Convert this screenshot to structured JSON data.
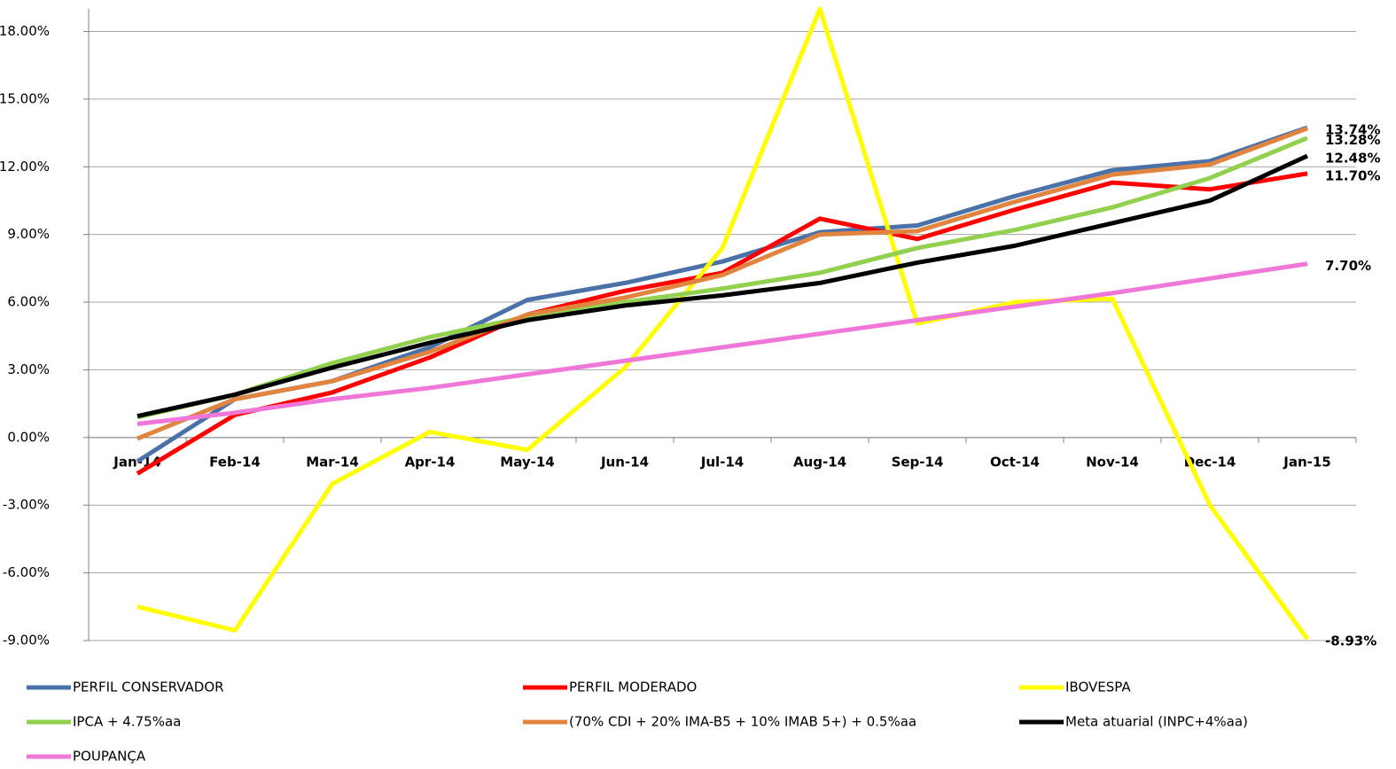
{
  "chart_data": {
    "type": "line",
    "categories": [
      "Jan-14",
      "Feb-14",
      "Mar-14",
      "Apr-14",
      "May-14",
      "Jun-14",
      "Jul-14",
      "Aug-14",
      "Sep-14",
      "Oct-14",
      "Nov-14",
      "Dec-14",
      "Jan-15"
    ],
    "ylim": [
      -9,
      19
    ],
    "yticks": [
      {
        "value": -9,
        "label": "-9.00%"
      },
      {
        "value": -6,
        "label": "-6.00%"
      },
      {
        "value": -3,
        "label": "-3.00%"
      },
      {
        "value": 0,
        "label": "0.00%"
      },
      {
        "value": 3,
        "label": "3.00%"
      },
      {
        "value": 6,
        "label": "6.00%"
      },
      {
        "value": 9,
        "label": "9.00%"
      },
      {
        "value": 12,
        "label": "12.00%"
      },
      {
        "value": 15,
        "label": "15.00%"
      },
      {
        "value": 18,
        "label": "18.00%"
      }
    ],
    "grid": true,
    "series": [
      {
        "name": "PERFIL CONSERVADOR",
        "color": "#4a72a8",
        "values": [
          -1.06,
          1.7,
          2.5,
          4.0,
          6.1,
          6.85,
          7.8,
          9.1,
          9.4,
          10.7,
          11.85,
          12.25,
          13.74
        ],
        "value_labels": [
          null,
          null,
          null,
          null,
          null,
          null,
          null,
          null,
          null,
          null,
          null,
          null,
          "13.74%"
        ]
      },
      {
        "name": "PERFIL MODERADO",
        "color": "#ff0000",
        "values": [
          -1.6,
          1.0,
          2.0,
          3.55,
          5.45,
          6.5,
          7.3,
          9.7,
          8.8,
          10.1,
          11.3,
          11.0,
          11.7
        ],
        "value_labels": [
          null,
          null,
          null,
          null,
          null,
          null,
          null,
          null,
          null,
          null,
          null,
          null,
          "11.70%"
        ]
      },
      {
        "name": "IBOVESPA",
        "color": "#ffff00",
        "values": [
          -7.5,
          -8.55,
          -2.05,
          0.25,
          -0.55,
          3.1,
          8.4,
          19.0,
          5.05,
          6.0,
          6.15,
          -3.0,
          -8.93
        ],
        "value_labels": [
          null,
          null,
          null,
          null,
          null,
          null,
          null,
          null,
          null,
          null,
          null,
          null,
          "-8.93%"
        ]
      },
      {
        "name": "IPCA + 4.75%aa",
        "color": "#92d050",
        "values": [
          0.9,
          1.9,
          3.3,
          4.45,
          5.35,
          6.0,
          6.6,
          7.3,
          8.4,
          9.2,
          10.2,
          11.5,
          13.28
        ],
        "value_labels": [
          null,
          null,
          null,
          null,
          null,
          null,
          null,
          null,
          null,
          null,
          null,
          null,
          "13.28%"
        ]
      },
      {
        "name": "(70% CDI + 20% IMA-B5 + 10% IMAB 5+) + 0.5%aa",
        "color": "#e0843f",
        "values": [
          -0.05,
          1.7,
          2.5,
          3.8,
          5.45,
          6.2,
          7.2,
          9.0,
          9.15,
          10.45,
          11.65,
          12.1,
          13.7
        ]
      },
      {
        "name": "Meta atuarial (INPC+4%aa)",
        "color": "#000000",
        "values": [
          0.95,
          1.9,
          3.1,
          4.2,
          5.2,
          5.85,
          6.3,
          6.85,
          7.75,
          8.5,
          9.5,
          10.5,
          12.48
        ],
        "value_labels": [
          null,
          null,
          null,
          null,
          null,
          null,
          null,
          null,
          null,
          null,
          null,
          null,
          "12.48%"
        ]
      },
      {
        "name": "POUPANÇA",
        "color": "#ee77d8",
        "values": [
          0.6,
          1.1,
          1.7,
          2.2,
          2.8,
          3.4,
          4.0,
          4.6,
          5.2,
          5.8,
          6.4,
          7.05,
          7.7
        ],
        "value_labels": [
          null,
          null,
          null,
          null,
          null,
          null,
          null,
          null,
          null,
          null,
          null,
          null,
          "7.70%"
        ]
      }
    ]
  }
}
